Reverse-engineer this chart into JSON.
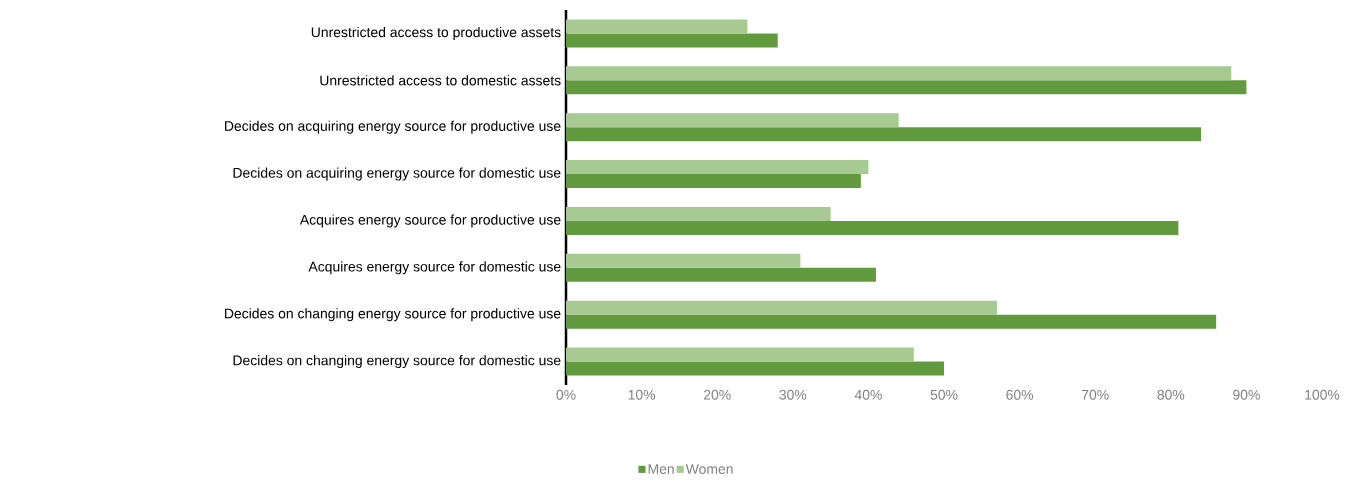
{
  "chart_data": {
    "type": "bar",
    "orientation": "horizontal",
    "categories": [
      "Unrestricted access to productive assets",
      "Unrestricted access to domestic assets",
      "Decides on acquiring energy source for productive use",
      "Decides on acquiring energy source for domestic use",
      "Acquires energy source for productive use",
      "Acquires energy source for domestic use",
      "Decides on changing energy source for productive use",
      "Decides on changing energy source for domestic use"
    ],
    "series": [
      {
        "name": "Men",
        "color": "#629b3f",
        "values": [
          28,
          90,
          84,
          39,
          81,
          41,
          86,
          50
        ]
      },
      {
        "name": "Women",
        "color": "#a7c992",
        "values": [
          24,
          88,
          44,
          40,
          35,
          31,
          57,
          46
        ]
      }
    ],
    "xlim": [
      0,
      100
    ],
    "xticks": [
      {
        "value": 0,
        "label": "0%"
      },
      {
        "value": 10,
        "label": "10%"
      },
      {
        "value": 20,
        "label": "20%"
      },
      {
        "value": 30,
        "label": "30%"
      },
      {
        "value": 40,
        "label": "40%"
      },
      {
        "value": 50,
        "label": "50%"
      },
      {
        "value": 60,
        "label": "60%"
      },
      {
        "value": 70,
        "label": "70%"
      },
      {
        "value": 80,
        "label": "80%"
      },
      {
        "value": 90,
        "label": "90%"
      },
      {
        "value": 100,
        "label": "100%"
      }
    ],
    "grid": false,
    "legend": "bottom"
  }
}
